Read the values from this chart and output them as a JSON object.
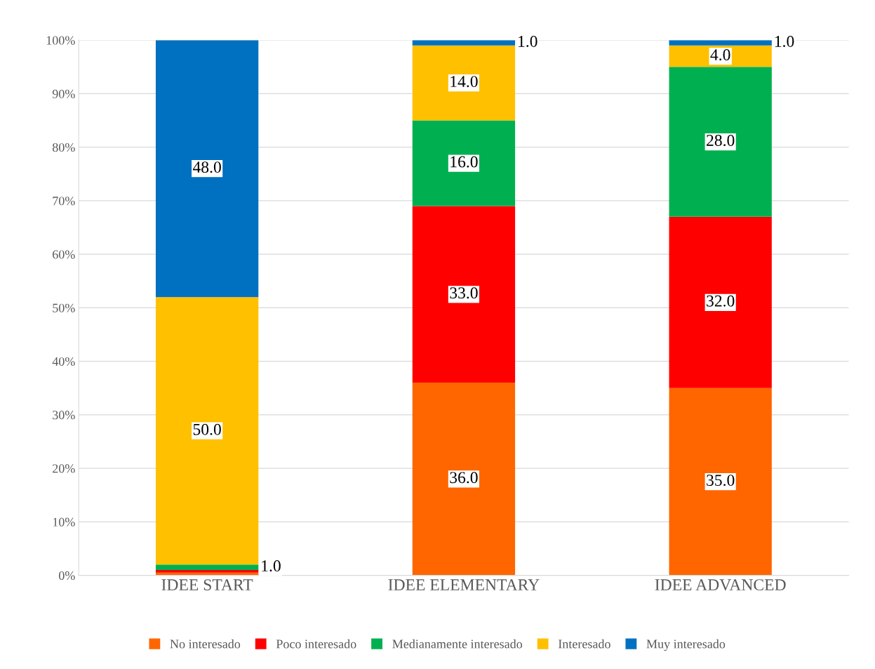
{
  "chart_data": {
    "type": "bar",
    "stacked": true,
    "categories": [
      "IDEE START",
      "IDEE ELEMENTARY",
      "IDEE ADVANCED"
    ],
    "series": [
      {
        "name": "No interesado",
        "color": "#ff6600",
        "values": [
          0.5,
          36,
          35
        ],
        "value_labels": [
          null,
          "36.0",
          "35.0"
        ]
      },
      {
        "name": "Poco interesado",
        "color": "#ff0000",
        "values": [
          0.5,
          33,
          32
        ],
        "value_labels": [
          null,
          "33.0",
          "32.0"
        ]
      },
      {
        "name": "Medianamente interesado",
        "color": "#00b050",
        "values": [
          1,
          16,
          28
        ],
        "value_labels": [
          "1.0",
          "16.0",
          "28.0"
        ]
      },
      {
        "name": "Interesado",
        "color": "#ffc000",
        "values": [
          50,
          14,
          4
        ],
        "value_labels": [
          "50.0",
          "14.0",
          "4.0"
        ]
      },
      {
        "name": "Muy interesado",
        "color": "#0070c0",
        "values": [
          48,
          1,
          1
        ],
        "value_labels": [
          "48.0",
          "1.0",
          "1.0"
        ]
      }
    ],
    "ylim": [
      0,
      100
    ],
    "yticks": [
      {
        "value": 0,
        "label": "0%"
      },
      {
        "value": 10,
        "label": "10%"
      },
      {
        "value": 20,
        "label": "20%"
      },
      {
        "value": 30,
        "label": "30%"
      },
      {
        "value": 40,
        "label": "40%"
      },
      {
        "value": 50,
        "label": "50%"
      },
      {
        "value": 60,
        "label": "60%"
      },
      {
        "value": 70,
        "label": "70%"
      },
      {
        "value": 80,
        "label": "80%"
      },
      {
        "value": 90,
        "label": "90%"
      },
      {
        "value": 100,
        "label": "100%"
      }
    ],
    "grid": "y",
    "legend": "bottom"
  }
}
